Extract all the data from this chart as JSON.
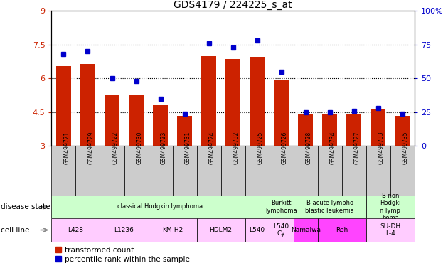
{
  "title": "GDS4179 / 224225_s_at",
  "samples": [
    "GSM499721",
    "GSM499729",
    "GSM499722",
    "GSM499730",
    "GSM499723",
    "GSM499731",
    "GSM499724",
    "GSM499732",
    "GSM499725",
    "GSM499726",
    "GSM499728",
    "GSM499734",
    "GSM499727",
    "GSM499733",
    "GSM499735"
  ],
  "transformed_count": [
    6.55,
    6.65,
    5.3,
    5.25,
    4.8,
    4.35,
    7.0,
    6.85,
    6.95,
    5.95,
    4.45,
    4.4,
    4.4,
    4.65,
    4.35
  ],
  "percentile_rank": [
    68,
    70,
    50,
    48,
    35,
    24,
    76,
    73,
    78,
    55,
    25,
    25,
    26,
    28,
    24
  ],
  "ylim_left": [
    3,
    9
  ],
  "ylim_right": [
    0,
    100
  ],
  "yticks_left": [
    3,
    4.5,
    6,
    7.5,
    9
  ],
  "yticks_right": [
    0,
    25,
    50,
    75,
    100
  ],
  "ytick_labels_left": [
    "3",
    "4.5",
    "6",
    "7.5",
    "9"
  ],
  "ytick_labels_right": [
    "0",
    "25",
    "50",
    "75",
    "100%"
  ],
  "hlines": [
    4.5,
    6.0,
    7.5
  ],
  "bar_color": "#cc2200",
  "dot_color": "#0000cc",
  "bar_bottom": 3,
  "xtick_bg": "#cccccc",
  "disease_state_groups": [
    {
      "label": "classical Hodgkin lymphoma",
      "start": 0,
      "end": 9,
      "color": "#ccffcc"
    },
    {
      "label": "Burkitt\nlymphoma",
      "start": 9,
      "end": 10,
      "color": "#ccffcc"
    },
    {
      "label": "B acute lympho\nblastic leukemia",
      "start": 10,
      "end": 13,
      "color": "#ccffcc"
    },
    {
      "label": "B non\nHodgki\nn lymp\nhoma",
      "start": 13,
      "end": 15,
      "color": "#ccffcc"
    }
  ],
  "cell_line_groups": [
    {
      "label": "L428",
      "start": 0,
      "end": 2,
      "color": "#ffccff"
    },
    {
      "label": "L1236",
      "start": 2,
      "end": 4,
      "color": "#ffccff"
    },
    {
      "label": "KM-H2",
      "start": 4,
      "end": 6,
      "color": "#ffccff"
    },
    {
      "label": "HDLM2",
      "start": 6,
      "end": 8,
      "color": "#ffccff"
    },
    {
      "label": "L540",
      "start": 8,
      "end": 9,
      "color": "#ffccff"
    },
    {
      "label": "L540\nCy",
      "start": 9,
      "end": 10,
      "color": "#ffccff"
    },
    {
      "label": "Namalwa",
      "start": 10,
      "end": 11,
      "color": "#ff44ff"
    },
    {
      "label": "Reh",
      "start": 11,
      "end": 13,
      "color": "#ff44ff"
    },
    {
      "label": "SU-DH\nL-4",
      "start": 13,
      "end": 15,
      "color": "#ffccff"
    }
  ],
  "legend_labels": [
    "transformed count",
    "percentile rank within the sample"
  ],
  "legend_colors": [
    "#cc2200",
    "#0000cc"
  ],
  "fig_width": 6.3,
  "fig_height": 3.84,
  "dpi": 100
}
